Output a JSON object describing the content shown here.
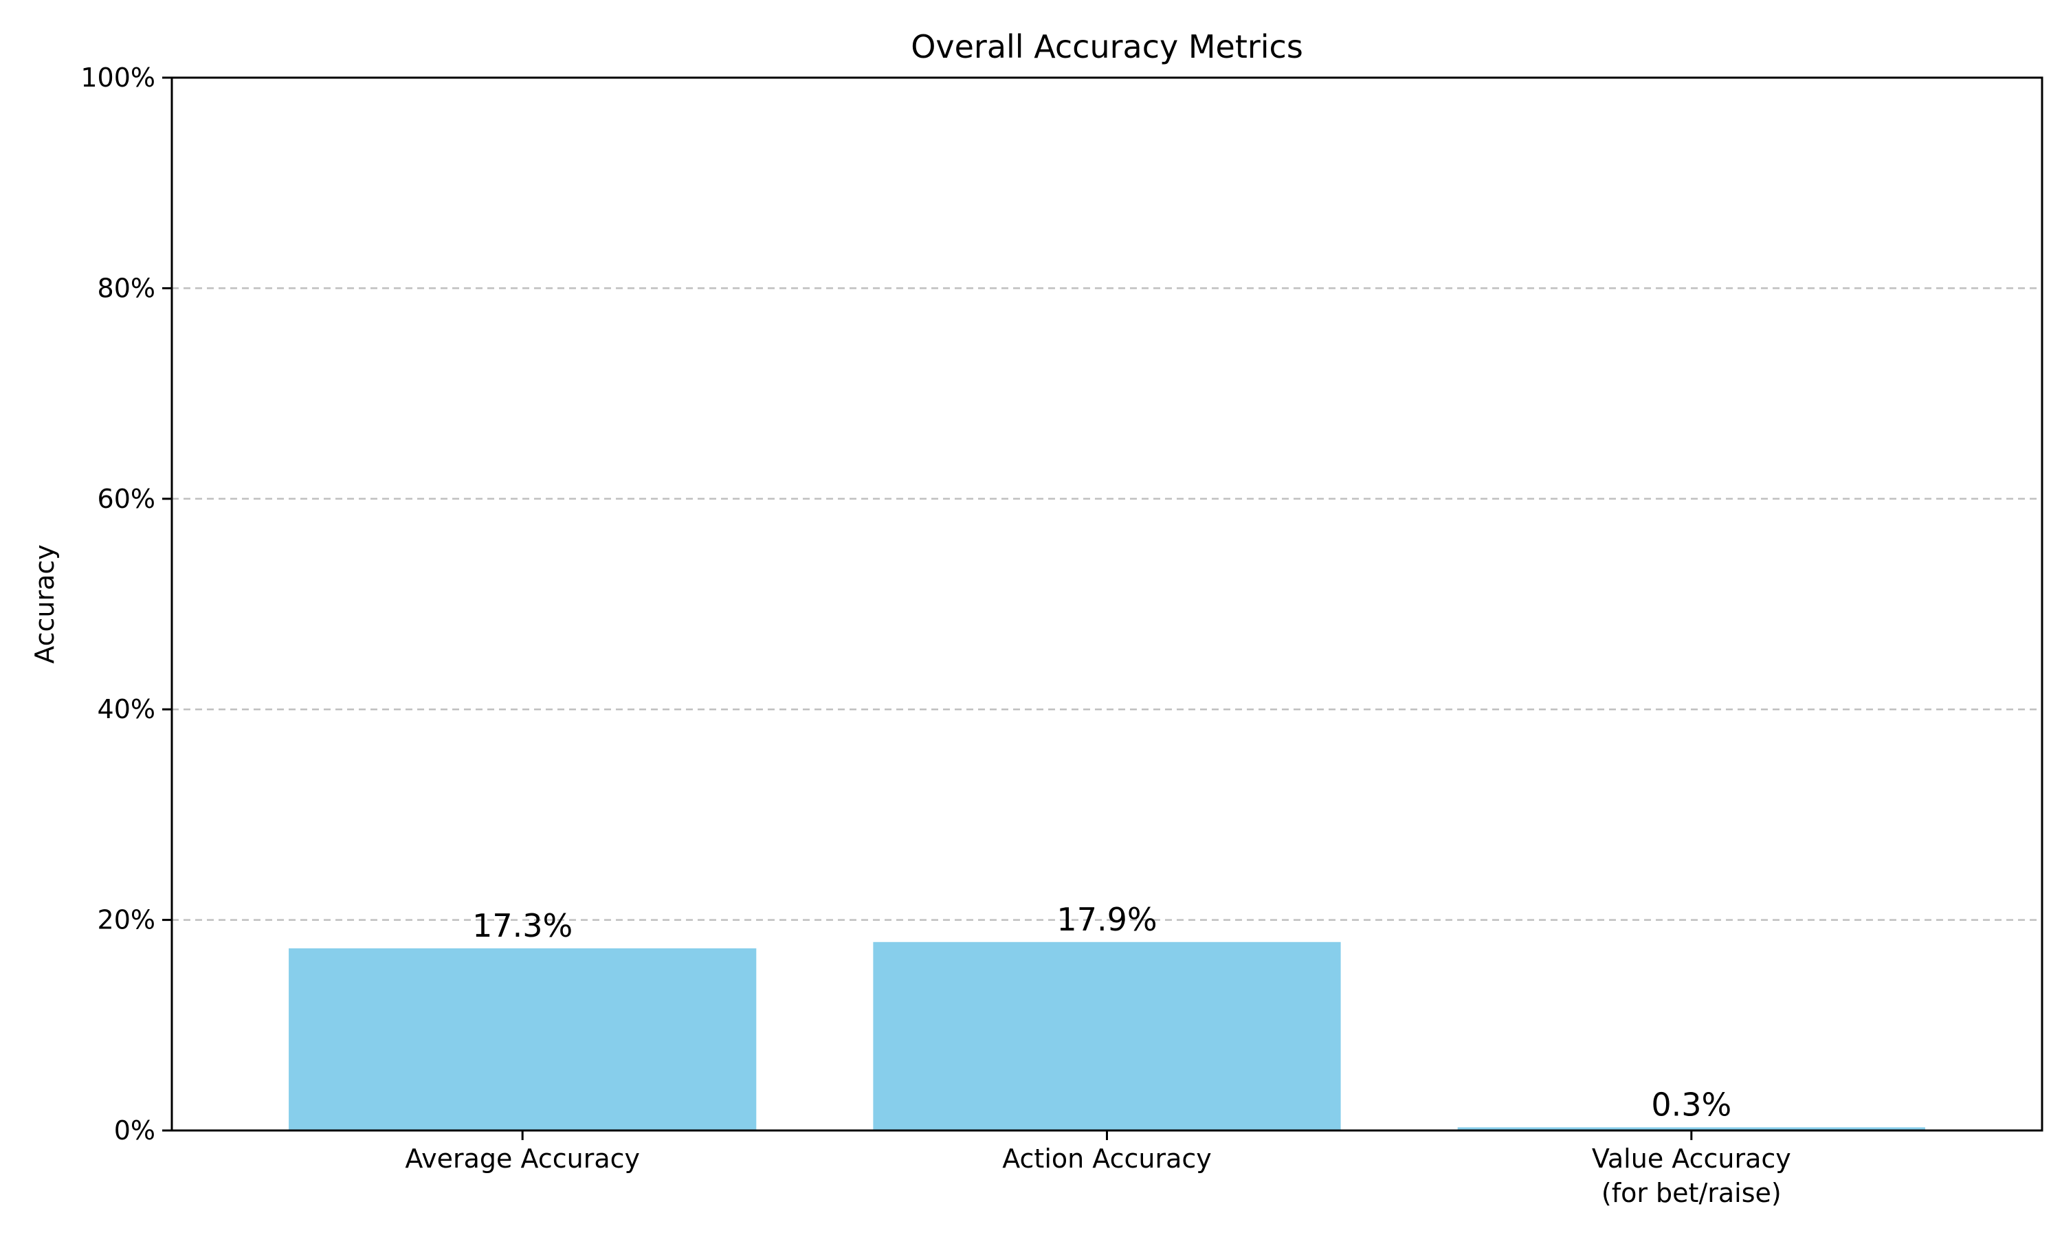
{
  "chart_data": {
    "type": "bar",
    "title": "Overall Accuracy Metrics",
    "xlabel": "",
    "ylabel": "Accuracy",
    "categories": [
      [
        "Average Accuracy"
      ],
      [
        "Action Accuracy"
      ],
      [
        "Value Accuracy",
        "(for bet/raise)"
      ]
    ],
    "values": [
      17.3,
      17.9,
      0.3
    ],
    "value_labels": [
      "17.3%",
      "17.9%",
      "0.3%"
    ],
    "ylim": [
      0,
      100
    ],
    "yticks": [
      0,
      20,
      40,
      60,
      80,
      100
    ],
    "ytick_labels": [
      "0%",
      "20%",
      "40%",
      "60%",
      "80%",
      "100%"
    ],
    "grid": {
      "axis": "y",
      "style": "dashed",
      "color": "#bfbfbf"
    },
    "bar_color": "#87ceeb"
  }
}
